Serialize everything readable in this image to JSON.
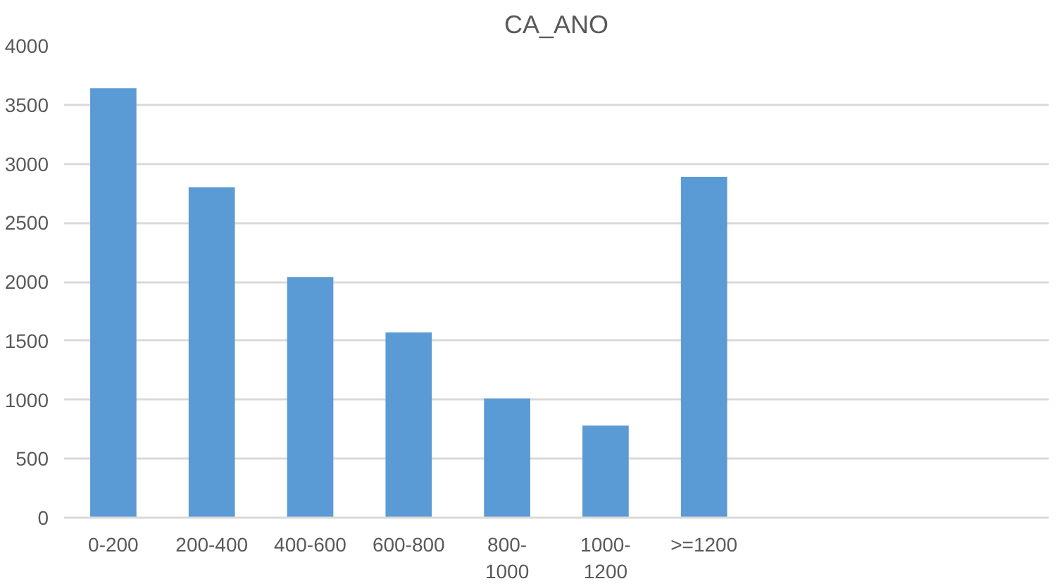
{
  "chart_data": {
    "type": "bar",
    "title": "CA_ANO",
    "categories": [
      "0-200",
      "200-400",
      "400-600",
      "600-800",
      "800-1000",
      "1000-1200",
      ">=1200",
      null,
      null,
      null
    ],
    "values": [
      3640,
      2800,
      2040,
      1570,
      1010,
      780,
      2890,
      null,
      null,
      null
    ],
    "color": "#5b9bd5",
    "ylim": [
      0,
      4000
    ],
    "yticks": [
      0,
      500,
      1000,
      1500,
      2000,
      2500,
      3000,
      3500,
      4000
    ],
    "grid": "y"
  }
}
